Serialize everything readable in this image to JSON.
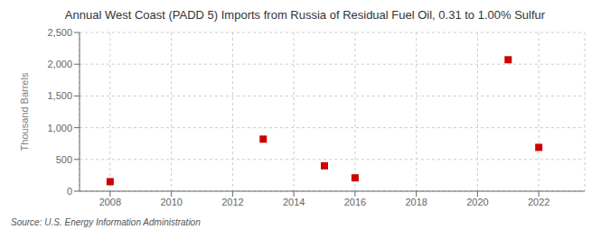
{
  "chart_data": {
    "type": "scatter",
    "title": "Annual West Coast (PADD 5) Imports from Russia of Residual Fuel Oil, 0.31 to 1.00% Sulfur",
    "ylabel": "Thousand Barrels",
    "source": "Source: U.S. Energy Information Administration",
    "x": [
      2008,
      2013,
      2015,
      2016,
      2021,
      2022
    ],
    "values": [
      150,
      820,
      400,
      210,
      2070,
      690
    ],
    "color": "#cc0000",
    "marker": "square",
    "xlim": [
      2007.0,
      2023.5
    ],
    "ylim": [
      0,
      2500
    ],
    "xticks": [
      2008,
      2010,
      2012,
      2014,
      2016,
      2018,
      2020,
      2022
    ],
    "yticks": [
      0,
      500,
      {
        "value": 1000,
        "label": "1,000"
      },
      {
        "value": 1500,
        "label": "1,500"
      },
      {
        "value": 2000,
        "label": "2,000"
      },
      {
        "value": 2500,
        "label": "2,500"
      }
    ],
    "grid": true
  }
}
